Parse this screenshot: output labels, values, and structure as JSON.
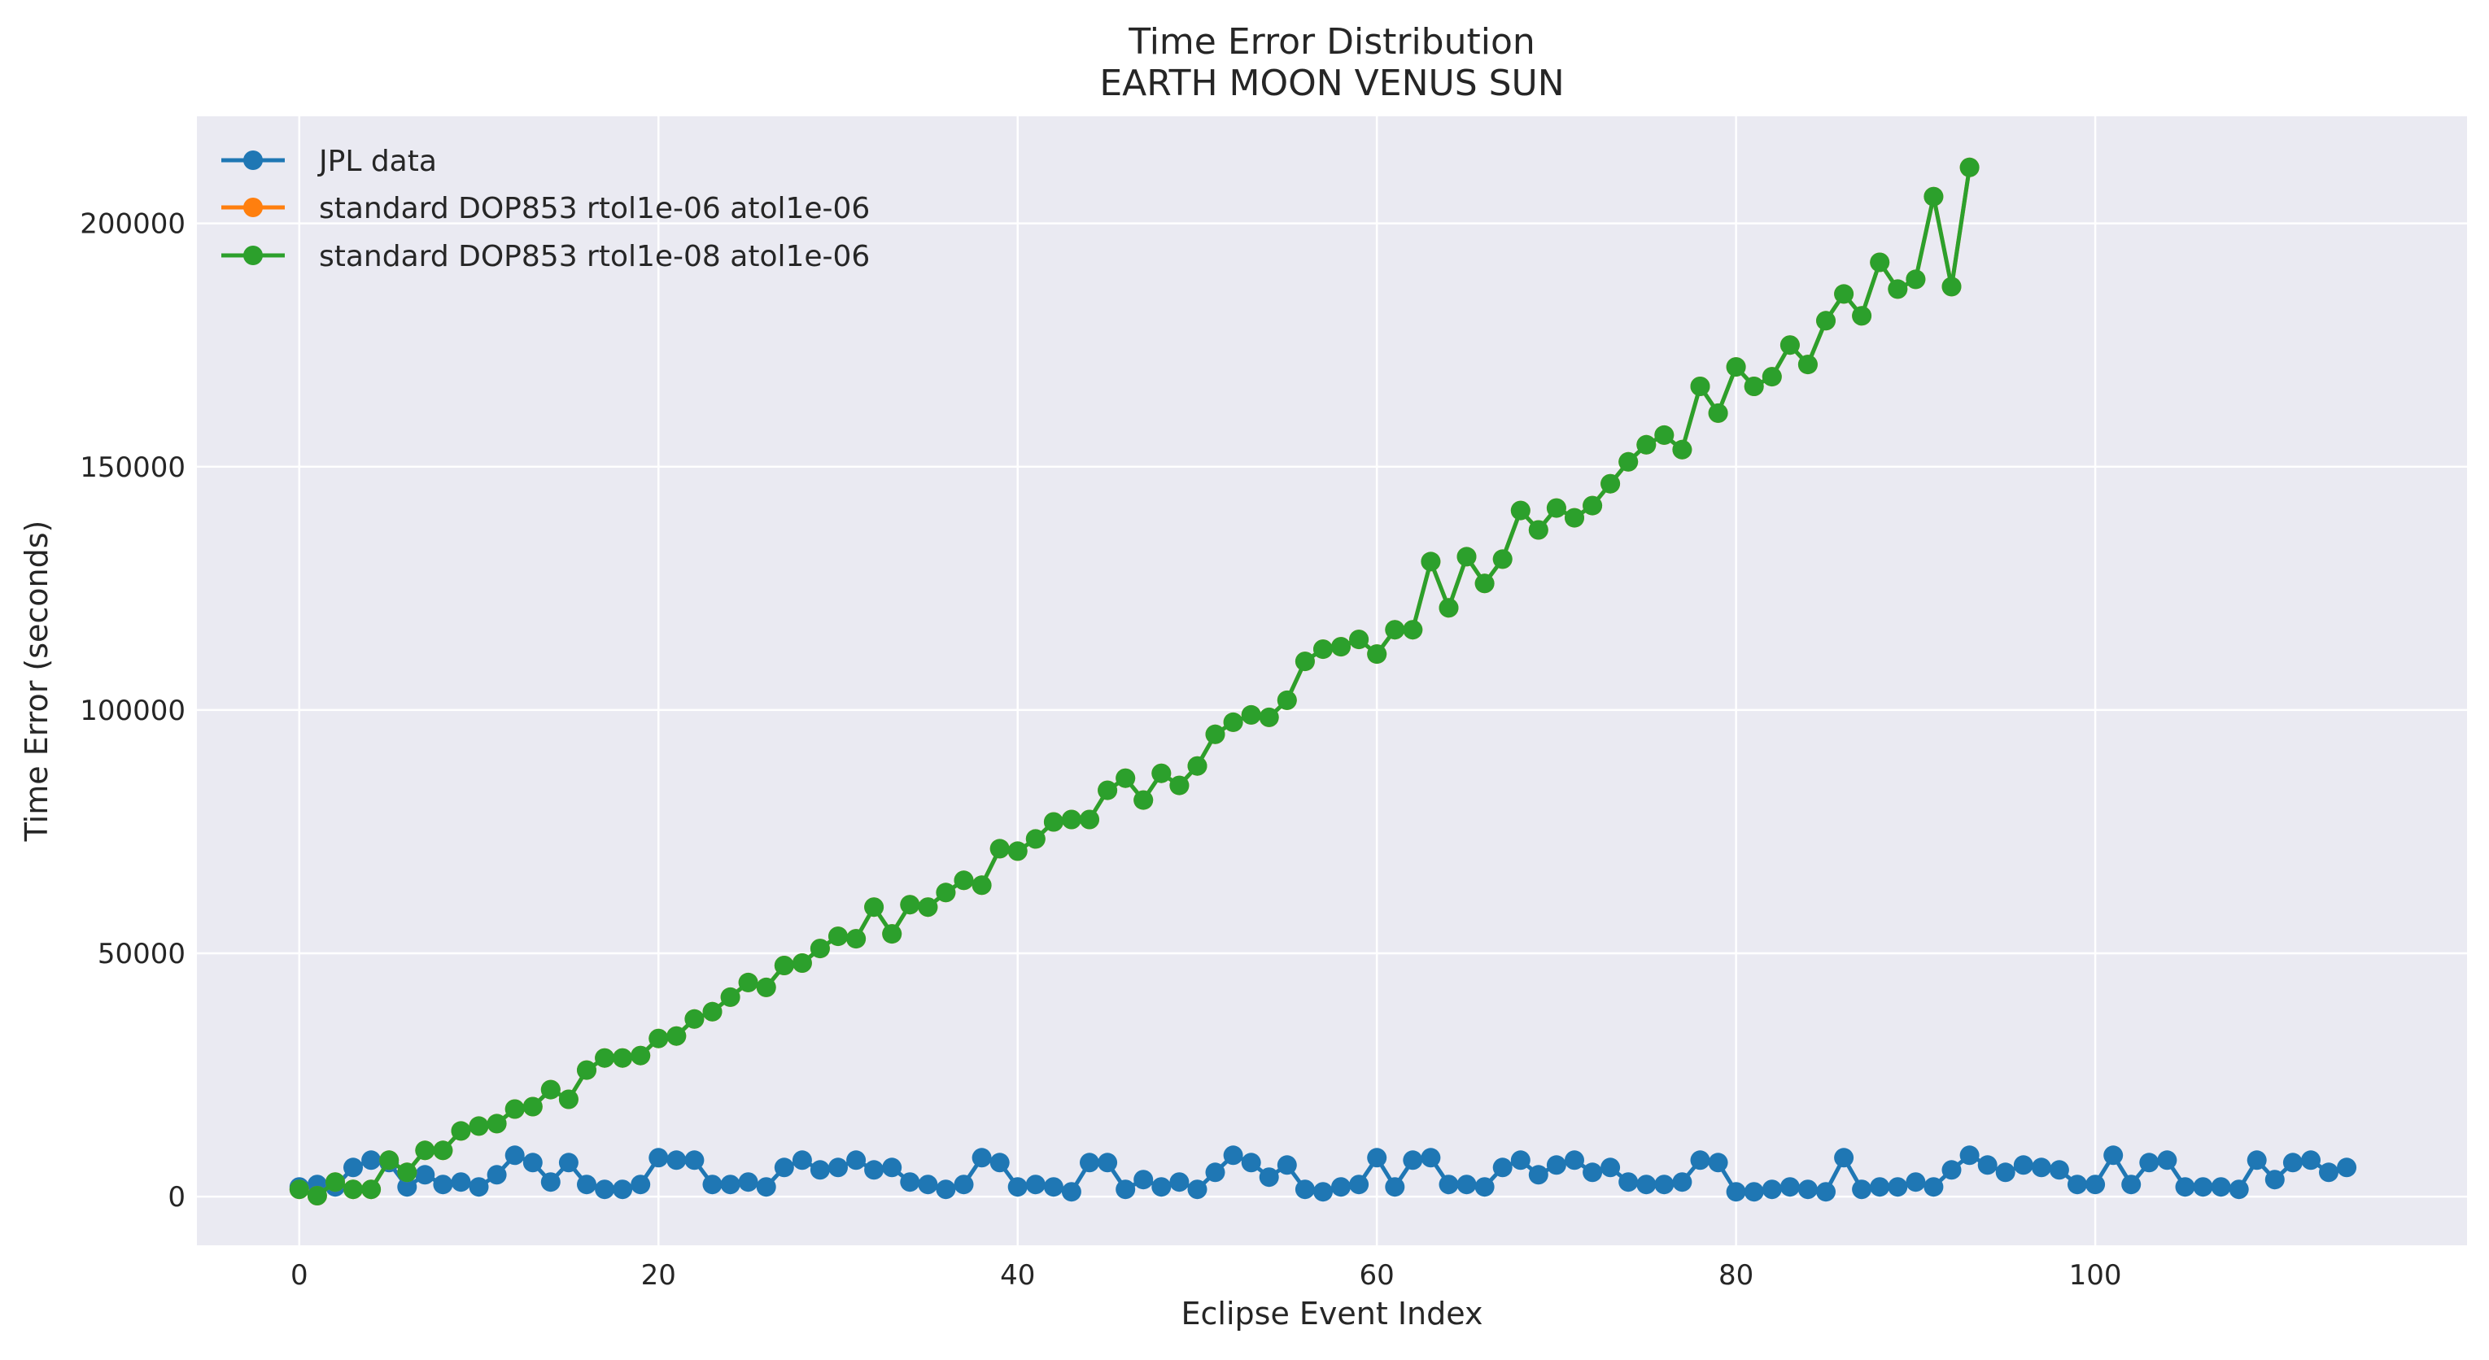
{
  "chart_data": {
    "type": "line",
    "title": "Time Error Distribution",
    "subtitle": "EARTH MOON VENUS SUN",
    "xlabel": "Eclipse Event Index",
    "ylabel": "Time Error (seconds)",
    "xlim": [
      -5.7,
      120.7
    ],
    "ylim": [
      -10000,
      222000
    ],
    "xticks": [
      0,
      20,
      40,
      60,
      80,
      100
    ],
    "yticks": [
      0,
      50000,
      100000,
      150000,
      200000
    ],
    "grid": true,
    "legend_position": "top-left",
    "series": [
      {
        "name": "JPL data",
        "color": "#1f77b4",
        "x": [
          0,
          1,
          2,
          3,
          4,
          5,
          6,
          7,
          8,
          9,
          10,
          11,
          12,
          13,
          14,
          15,
          16,
          17,
          18,
          19,
          20,
          21,
          22,
          23,
          24,
          25,
          26,
          27,
          28,
          29,
          30,
          31,
          32,
          33,
          34,
          35,
          36,
          37,
          38,
          39,
          40,
          41,
          42,
          43,
          44,
          45,
          46,
          47,
          48,
          49,
          50,
          51,
          52,
          53,
          54,
          55,
          56,
          57,
          58,
          59,
          60,
          61,
          62,
          63,
          64,
          65,
          66,
          67,
          68,
          69,
          70,
          71,
          72,
          73,
          74,
          75,
          76,
          77,
          78,
          79,
          80,
          81,
          82,
          83,
          84,
          85,
          86,
          87,
          88,
          89,
          90,
          91,
          92,
          93,
          94,
          95,
          96,
          97,
          98,
          99,
          100,
          101,
          102,
          103,
          104,
          105,
          106,
          107,
          108,
          109,
          110,
          111,
          112,
          113,
          114
        ],
        "y": [
          2000,
          2500,
          2000,
          6000,
          7500,
          7000,
          2000,
          4500,
          2500,
          3000,
          2000,
          4500,
          8500,
          7000,
          3000,
          7000,
          2500,
          1500,
          1500,
          2500,
          8000,
          7500,
          7500,
          2500,
          2500,
          3000,
          2000,
          6000,
          7500,
          5500,
          6000,
          7500,
          5500,
          6000,
          3000,
          2500,
          1500,
          2500,
          8000,
          7000,
          2000,
          2500,
          2000,
          1000,
          7000,
          7000,
          1500,
          3500,
          2000,
          3000,
          1500,
          5000,
          8500,
          7000,
          4000,
          6500,
          1500,
          1000,
          2000,
          2500,
          8000,
          2000,
          7500,
          8000,
          2500,
          2500,
          2000,
          6000,
          7500,
          4500,
          6500,
          7500,
          5000,
          6000,
          3000,
          2500,
          2500,
          3000,
          7500,
          7000,
          1000,
          1000,
          1500,
          2000,
          1500,
          1000,
          8000,
          1500,
          2000,
          2000,
          3000,
          2000,
          5500,
          8500,
          6500,
          5000,
          6500,
          6000,
          5500,
          2500,
          2500,
          8500,
          2500,
          7000,
          7500,
          2000,
          2000,
          2000,
          1500,
          7500,
          3500,
          7000,
          7500,
          5000,
          6000
        ]
      },
      {
        "name": "standard DOP853 rtol1e-06 atol1e-06",
        "color": "#ff7f0e",
        "x": [
          0,
          1,
          2,
          3,
          4,
          5,
          6,
          7,
          8,
          9,
          10,
          11,
          12,
          13,
          14,
          15,
          16,
          17,
          18,
          19,
          20,
          21,
          22,
          23,
          24,
          25,
          26,
          27,
          28,
          29,
          30,
          31,
          32,
          33,
          34,
          35,
          36,
          37,
          38,
          39,
          40,
          41,
          42,
          43,
          44,
          45,
          46,
          47,
          48,
          49,
          50,
          51,
          52,
          53,
          54,
          55,
          56,
          57,
          58,
          59,
          60,
          61,
          62,
          63,
          64,
          65,
          66,
          67,
          68,
          69,
          70,
          71,
          72,
          73,
          74,
          75,
          76,
          77,
          78,
          79,
          80,
          81,
          82,
          83,
          84,
          85,
          86,
          87,
          88,
          89,
          90,
          91,
          92,
          93
        ],
        "y": [
          1500,
          200,
          3000,
          1500,
          1500,
          7500,
          5000,
          9500,
          9500,
          13500,
          14500,
          15000,
          18000,
          18500,
          22000,
          20000,
          26000,
          28500,
          28500,
          29000,
          32500,
          33000,
          36500,
          38000,
          41000,
          44000,
          43000,
          47500,
          48000,
          51000,
          53500,
          53000,
          59500,
          54000,
          60000,
          59500,
          62500,
          65000,
          64000,
          71500,
          71000,
          73500,
          77000,
          77500,
          77500,
          83500,
          86000,
          81500,
          87000,
          84500,
          88500,
          95000,
          97500,
          99000,
          98500,
          102000,
          110000,
          112500,
          113000,
          114500,
          111500,
          116500,
          116500,
          130500,
          121000,
          131500,
          126000,
          131000,
          141000,
          137000,
          141500,
          139500,
          142000,
          146500,
          151000,
          154500,
          156500,
          153500,
          166500,
          161000,
          170500,
          166500,
          168500,
          175000,
          171000,
          180000,
          185500,
          181000,
          192000,
          186500,
          188500,
          205500,
          187000,
          211500
        ]
      },
      {
        "name": "standard DOP853 rtol1e-08 atol1e-06",
        "color": "#2ca02c",
        "x": [
          0,
          1,
          2,
          3,
          4,
          5,
          6,
          7,
          8,
          9,
          10,
          11,
          12,
          13,
          14,
          15,
          16,
          17,
          18,
          19,
          20,
          21,
          22,
          23,
          24,
          25,
          26,
          27,
          28,
          29,
          30,
          31,
          32,
          33,
          34,
          35,
          36,
          37,
          38,
          39,
          40,
          41,
          42,
          43,
          44,
          45,
          46,
          47,
          48,
          49,
          50,
          51,
          52,
          53,
          54,
          55,
          56,
          57,
          58,
          59,
          60,
          61,
          62,
          63,
          64,
          65,
          66,
          67,
          68,
          69,
          70,
          71,
          72,
          73,
          74,
          75,
          76,
          77,
          78,
          79,
          80,
          81,
          82,
          83,
          84,
          85,
          86,
          87,
          88,
          89,
          90,
          91,
          92,
          93
        ],
        "y": [
          1500,
          200,
          3000,
          1500,
          1500,
          7500,
          5000,
          9500,
          9500,
          13500,
          14500,
          15000,
          18000,
          18500,
          22000,
          20000,
          26000,
          28500,
          28500,
          29000,
          32500,
          33000,
          36500,
          38000,
          41000,
          44000,
          43000,
          47500,
          48000,
          51000,
          53500,
          53000,
          59500,
          54000,
          60000,
          59500,
          62500,
          65000,
          64000,
          71500,
          71000,
          73500,
          77000,
          77500,
          77500,
          83500,
          86000,
          81500,
          87000,
          84500,
          88500,
          95000,
          97500,
          99000,
          98500,
          102000,
          110000,
          112500,
          113000,
          114500,
          111500,
          116500,
          116500,
          130500,
          121000,
          131500,
          126000,
          131000,
          141000,
          137000,
          141500,
          139500,
          142000,
          146500,
          151000,
          154500,
          156500,
          153500,
          166500,
          161000,
          170500,
          166500,
          168500,
          175000,
          171000,
          180000,
          185500,
          181000,
          192000,
          186500,
          188500,
          205500,
          187000,
          211500
        ]
      }
    ]
  }
}
